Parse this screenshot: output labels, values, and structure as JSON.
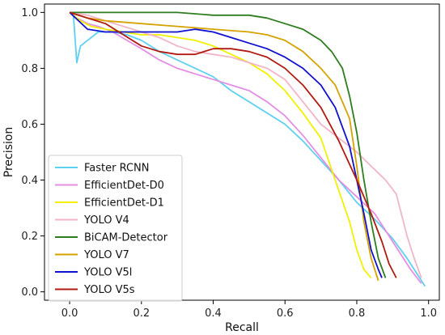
{
  "chart_data": {
    "type": "line",
    "title": "",
    "xlabel": "Recall",
    "ylabel": "Precision",
    "xlim": [
      -0.07,
      1.03
    ],
    "ylim": [
      -0.03,
      1.03
    ],
    "xticks": [
      0.0,
      0.2,
      0.4,
      0.6,
      0.8,
      1.0
    ],
    "yticks": [
      0.0,
      0.2,
      0.4,
      0.6,
      0.8,
      1.0
    ],
    "xtick_labels": [
      "0.0",
      "0.2",
      "0.4",
      "0.6",
      "0.8",
      "1.0"
    ],
    "ytick_labels": [
      "0.0",
      "0.2",
      "0.4",
      "0.6",
      "0.8",
      "1.0"
    ],
    "grid": false,
    "legend_position": "lower-left",
    "series": [
      {
        "name": "Faster RCNN",
        "color": "#5fd0f2",
        "x": [
          0.0,
          0.01,
          0.02,
          0.03,
          0.05,
          0.08,
          0.12,
          0.16,
          0.2,
          0.25,
          0.3,
          0.35,
          0.4,
          0.45,
          0.5,
          0.55,
          0.6,
          0.65,
          0.7,
          0.75,
          0.8,
          0.85,
          0.9,
          0.94,
          0.97,
          0.99
        ],
        "y": [
          1.0,
          1.0,
          0.82,
          0.88,
          0.9,
          0.93,
          0.93,
          0.92,
          0.9,
          0.86,
          0.83,
          0.8,
          0.77,
          0.72,
          0.68,
          0.64,
          0.6,
          0.54,
          0.47,
          0.4,
          0.32,
          0.26,
          0.19,
          0.12,
          0.06,
          0.02
        ]
      },
      {
        "name": "EfficientDet-D0",
        "color": "#e38ee3",
        "x": [
          0.0,
          0.02,
          0.05,
          0.08,
          0.12,
          0.16,
          0.2,
          0.25,
          0.3,
          0.35,
          0.4,
          0.45,
          0.5,
          0.55,
          0.6,
          0.65,
          0.7,
          0.75,
          0.8,
          0.85,
          0.9,
          0.95,
          0.98
        ],
        "y": [
          1.0,
          0.98,
          0.96,
          0.95,
          0.93,
          0.9,
          0.87,
          0.83,
          0.8,
          0.78,
          0.76,
          0.74,
          0.72,
          0.68,
          0.63,
          0.56,
          0.48,
          0.4,
          0.34,
          0.28,
          0.18,
          0.08,
          0.03
        ]
      },
      {
        "name": "EfficientDet-D1",
        "color": "#f0f000",
        "x": [
          0.0,
          0.03,
          0.06,
          0.1,
          0.15,
          0.2,
          0.25,
          0.3,
          0.35,
          0.4,
          0.45,
          0.5,
          0.55,
          0.6,
          0.65,
          0.7,
          0.74,
          0.78,
          0.8,
          0.82,
          0.84
        ],
        "y": [
          1.0,
          0.97,
          0.95,
          0.94,
          0.93,
          0.92,
          0.92,
          0.91,
          0.9,
          0.88,
          0.85,
          0.82,
          0.78,
          0.72,
          0.64,
          0.55,
          0.4,
          0.25,
          0.15,
          0.08,
          0.05
        ]
      },
      {
        "name": "YOLO V4",
        "color": "#f2b5c8",
        "x": [
          0.0,
          0.05,
          0.1,
          0.15,
          0.2,
          0.25,
          0.3,
          0.35,
          0.4,
          0.45,
          0.5,
          0.55,
          0.6,
          0.65,
          0.7,
          0.75,
          0.8,
          0.84,
          0.88,
          0.91,
          0.94,
          0.96,
          0.98
        ],
        "y": [
          1.0,
          0.99,
          0.97,
          0.95,
          0.93,
          0.91,
          0.88,
          0.86,
          0.85,
          0.84,
          0.82,
          0.8,
          0.76,
          0.68,
          0.6,
          0.55,
          0.5,
          0.45,
          0.4,
          0.35,
          0.2,
          0.12,
          0.05
        ]
      },
      {
        "name": "BiCAM-Detector",
        "color": "#2e7d1f",
        "x": [
          0.0,
          0.1,
          0.2,
          0.3,
          0.4,
          0.5,
          0.55,
          0.6,
          0.65,
          0.7,
          0.73,
          0.76,
          0.78,
          0.8,
          0.82,
          0.84,
          0.86,
          0.88
        ],
        "y": [
          1.0,
          1.0,
          1.0,
          1.0,
          0.99,
          0.99,
          0.98,
          0.96,
          0.94,
          0.9,
          0.86,
          0.8,
          0.7,
          0.57,
          0.4,
          0.25,
          0.12,
          0.05
        ]
      },
      {
        "name": "YOLO V7",
        "color": "#d4a300",
        "x": [
          0.0,
          0.05,
          0.1,
          0.2,
          0.3,
          0.4,
          0.5,
          0.55,
          0.6,
          0.65,
          0.7,
          0.74,
          0.78,
          0.8,
          0.82,
          0.84,
          0.86
        ],
        "y": [
          1.0,
          0.98,
          0.97,
          0.96,
          0.95,
          0.94,
          0.93,
          0.92,
          0.9,
          0.86,
          0.8,
          0.74,
          0.62,
          0.45,
          0.25,
          0.12,
          0.04
        ]
      },
      {
        "name": "YOLO V5l",
        "color": "#1010d0",
        "x": [
          0.0,
          0.05,
          0.1,
          0.15,
          0.2,
          0.25,
          0.3,
          0.35,
          0.4,
          0.45,
          0.5,
          0.55,
          0.6,
          0.65,
          0.7,
          0.74,
          0.78,
          0.8,
          0.82,
          0.84,
          0.86,
          0.87
        ],
        "y": [
          1.0,
          0.94,
          0.93,
          0.93,
          0.93,
          0.93,
          0.93,
          0.94,
          0.93,
          0.91,
          0.89,
          0.87,
          0.84,
          0.8,
          0.74,
          0.66,
          0.52,
          0.4,
          0.28,
          0.15,
          0.08,
          0.05
        ]
      },
      {
        "name": "YOLO V5s",
        "color": "#b01a10",
        "x": [
          0.0,
          0.05,
          0.1,
          0.15,
          0.2,
          0.25,
          0.3,
          0.35,
          0.4,
          0.45,
          0.5,
          0.55,
          0.6,
          0.65,
          0.7,
          0.75,
          0.8,
          0.84,
          0.87,
          0.89,
          0.91
        ],
        "y": [
          1.0,
          0.98,
          0.96,
          0.92,
          0.88,
          0.86,
          0.85,
          0.85,
          0.87,
          0.87,
          0.86,
          0.84,
          0.8,
          0.74,
          0.66,
          0.54,
          0.4,
          0.28,
          0.18,
          0.1,
          0.05
        ]
      }
    ]
  }
}
